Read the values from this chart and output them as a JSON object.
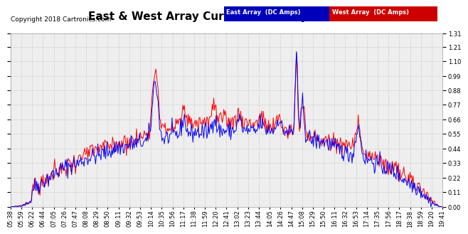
{
  "title": "East & West Array Current Mon May 21 19:45",
  "copyright": "Copyright 2018 Cartronics.com",
  "legend_east": "East Array  (DC Amps)",
  "legend_west": "West Array  (DC Amps)",
  "east_color": "#0000ff",
  "west_color": "#ff0000",
  "legend_east_bg": "#0000bb",
  "legend_west_bg": "#cc0000",
  "ylim": [
    0.0,
    1.31
  ],
  "yticks": [
    0.0,
    0.11,
    0.22,
    0.33,
    0.44,
    0.55,
    0.66,
    0.77,
    0.88,
    0.99,
    1.1,
    1.21,
    1.31
  ],
  "bg_color": "#ffffff",
  "plot_bg_color": "#eeeeee",
  "grid_color": "#bbbbbb",
  "title_fontsize": 11,
  "copyright_fontsize": 6.5,
  "tick_fontsize": 6,
  "legend_fontsize": 6,
  "line_width": 0.7,
  "x_tick_labels": [
    "05:38",
    "05:59",
    "06:22",
    "06:44",
    "07:05",
    "07:26",
    "07:47",
    "08:08",
    "08:29",
    "08:50",
    "09:11",
    "09:32",
    "09:53",
    "10:14",
    "10:35",
    "10:56",
    "11:17",
    "11:38",
    "11:59",
    "12:20",
    "12:41",
    "13:02",
    "13:23",
    "13:44",
    "14:05",
    "14:26",
    "14:47",
    "15:08",
    "15:29",
    "15:50",
    "16:11",
    "16:32",
    "16:53",
    "17:14",
    "17:35",
    "17:56",
    "18:17",
    "18:38",
    "18:59",
    "19:20",
    "19:41"
  ]
}
